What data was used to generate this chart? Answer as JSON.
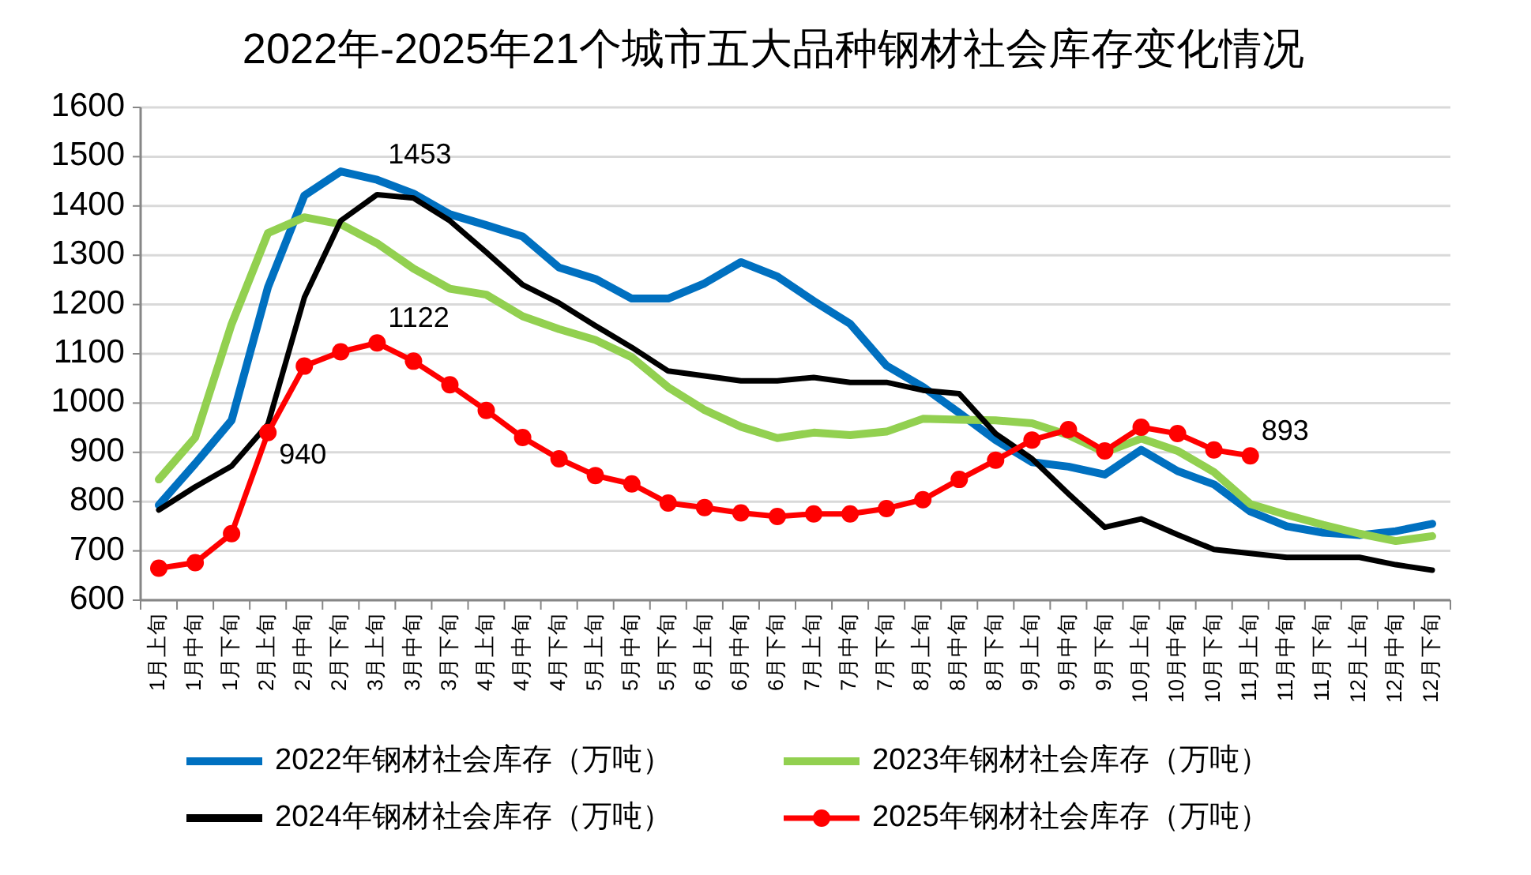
{
  "chart_data": {
    "type": "line",
    "title": "2022年-2025年21个城市五大品种钢材社会库存变化情况",
    "categories": [
      "1月上旬",
      "1月中旬",
      "1月下旬",
      "2月上旬",
      "2月中旬",
      "2月下旬",
      "3月上旬",
      "3月中旬",
      "3月下旬",
      "4月上旬",
      "4月中旬",
      "4月下旬",
      "5月上旬",
      "5月中旬",
      "5月下旬",
      "6月上旬",
      "6月中旬",
      "6月下旬",
      "7月上旬",
      "7月中旬",
      "7月下旬",
      "8月上旬",
      "8月中旬",
      "8月下旬",
      "9月上旬",
      "9月中旬",
      "9月下旬",
      "10月上旬",
      "10月中旬",
      "10月下旬",
      "11月上旬",
      "11月中旬",
      "11月下旬",
      "12月上旬",
      "12月中旬",
      "12月下旬"
    ],
    "ylim": [
      600,
      1600
    ],
    "yticks": [
      600,
      700,
      800,
      900,
      1000,
      1100,
      1200,
      1300,
      1400,
      1500,
      1600
    ],
    "grid": "y",
    "legend": "bottom",
    "series": [
      {
        "name": "2022年钢材社会库存（万吨）",
        "color": "#0070c0",
        "marker": "none",
        "values": [
          793,
          877,
          965,
          1235,
          1421,
          1470,
          1453,
          1425,
          1383,
          1361,
          1338,
          1275,
          1252,
          1212,
          1212,
          1243,
          1286,
          1257,
          1207,
          1161,
          1076,
          1033,
          980,
          925,
          880,
          871,
          855,
          905,
          862,
          835,
          780,
          750,
          737,
          732,
          740,
          755
        ],
        "value_labels": [
          null,
          null,
          null,
          null,
          null,
          null,
          "1453",
          null,
          null,
          null,
          null,
          null,
          null,
          null,
          null,
          null,
          null,
          null,
          null,
          null,
          null,
          null,
          null,
          null,
          null,
          null,
          null,
          null,
          null,
          null,
          null,
          null,
          null,
          null,
          null,
          null
        ]
      },
      {
        "name": "2023年钢材社会库存（万吨）",
        "color": "#92d050",
        "marker": "none",
        "values": [
          845,
          930,
          1160,
          1345,
          1377,
          1363,
          1324,
          1273,
          1232,
          1220,
          1176,
          1150,
          1128,
          1093,
          1032,
          986,
          952,
          929,
          940,
          935,
          942,
          968,
          966,
          965,
          959,
          935,
          900,
          928,
          903,
          860,
          795,
          773,
          753,
          735,
          720,
          730
        ]
      },
      {
        "name": "2024年钢材社会库存（万吨）",
        "color": "#000000",
        "marker": "none",
        "values": [
          783,
          830,
          872,
          957,
          1214,
          1370,
          1423,
          1416,
          1370,
          1306,
          1240,
          1203,
          1157,
          1113,
          1065,
          1055,
          1045,
          1045,
          1052,
          1042,
          1042,
          1026,
          1019,
          938,
          887,
          816,
          748,
          765,
          733,
          703,
          695,
          687,
          687,
          687,
          672,
          661
        ]
      },
      {
        "name": "2025年钢材社会库存（万吨）",
        "color": "#ff0000",
        "marker": "circle",
        "values": [
          665,
          676,
          735,
          940,
          1075,
          1104,
          1122,
          1085,
          1037,
          985,
          930,
          887,
          853,
          836,
          797,
          788,
          777,
          770,
          775,
          775,
          786,
          804,
          845,
          884,
          925,
          946,
          903,
          951,
          938,
          905,
          893,
          null,
          null,
          null,
          null,
          null
        ],
        "value_labels": [
          null,
          null,
          null,
          "940",
          null,
          null,
          "1122",
          null,
          null,
          null,
          null,
          null,
          null,
          null,
          null,
          null,
          null,
          null,
          null,
          null,
          null,
          null,
          null,
          null,
          null,
          null,
          null,
          null,
          null,
          null,
          "893",
          null,
          null,
          null,
          null,
          null
        ]
      }
    ]
  }
}
